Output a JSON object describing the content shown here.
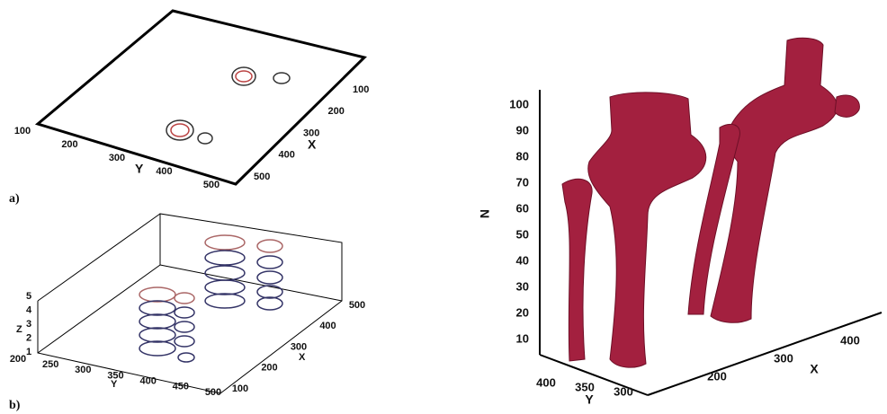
{
  "panels": [
    {
      "label": "a)",
      "x_label": "X",
      "y_label": "Y",
      "x_ticks": [
        "100",
        "200",
        "300",
        "400",
        "500"
      ],
      "y_ticks": [
        "100",
        "200",
        "300",
        "400",
        "500"
      ]
    },
    {
      "label": "b)",
      "x_label": "X",
      "y_label": "Y",
      "z_label": "Z",
      "x_ticks": [
        "100",
        "200",
        "300",
        "400",
        "500"
      ],
      "y_ticks": [
        "200",
        "250",
        "300",
        "350",
        "400",
        "450",
        "500"
      ],
      "z_ticks": [
        "1",
        "2",
        "3",
        "4",
        "5"
      ]
    },
    {
      "x_label": "X",
      "y_label": "Y",
      "z_label": "N",
      "x_ticks": [
        "200",
        "300",
        "400"
      ],
      "y_ticks": [
        "400",
        "350",
        "300"
      ],
      "z_ticks": [
        "10",
        "20",
        "30",
        "40",
        "50",
        "60",
        "70",
        "80",
        "90",
        "100"
      ]
    }
  ]
}
